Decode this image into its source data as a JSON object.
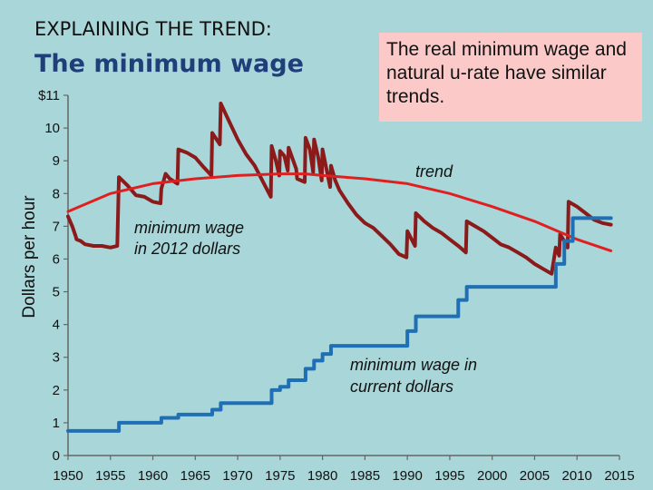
{
  "header": {
    "kicker": "EXPLAINING THE TREND:",
    "title": "The minimum wage"
  },
  "callout": {
    "text": "The real minimum wage and natural u-rate have similar trends."
  },
  "chart_data": {
    "type": "line",
    "ylabel": "Dollars per hour",
    "ylim": [
      0,
      11
    ],
    "xlim": [
      1950,
      2015
    ],
    "x_ticks": [
      "1950",
      "1955",
      "1960",
      "1965",
      "1970",
      "1975",
      "1980",
      "1985",
      "1990",
      "1995",
      "2000",
      "2005",
      "2010",
      "2015"
    ],
    "y_ticks": [
      "0",
      "1",
      "2",
      "3",
      "4",
      "5",
      "6",
      "7",
      "8",
      "9",
      "10",
      "$11"
    ],
    "annotations": {
      "real": "minimum wage in 2012 dollars",
      "trend": "trend",
      "nominal": "minimum wage in current dollars"
    },
    "colors": {
      "real": "#8b1a1a",
      "trend": "#e02020",
      "nominal": "#1f6fb5",
      "axis": "#666666"
    },
    "series": [
      {
        "key": "real",
        "x": [
          1950,
          1950.5,
          1950.9,
          1951,
          1951.5,
          1952,
          1953,
          1954,
          1955,
          1955.8,
          1956,
          1957,
          1958,
          1959,
          1960,
          1960.9,
          1961,
          1961.5,
          1962,
          1962.9,
          1963,
          1964,
          1965,
          1966,
          1966.9,
          1967,
          1967.9,
          1968,
          1969,
          1970,
          1971,
          1972,
          1973,
          1973.9,
          1974,
          1974.5,
          1974.9,
          1975,
          1975.5,
          1975.9,
          1976,
          1976.9,
          1977,
          1977.9,
          1978,
          1978.5,
          1978.9,
          1979,
          1979.5,
          1979.9,
          1980,
          1980.5,
          1980.9,
          1981,
          1981.5,
          1982,
          1983,
          1984,
          1985,
          1986,
          1987,
          1988,
          1989,
          1989.9,
          1990,
          1990.9,
          1991,
          1992,
          1993,
          1994,
          1995,
          1996,
          1996.9,
          1997,
          1998,
          1999,
          2000,
          2001,
          2002,
          2003,
          2004,
          2005,
          2006,
          2007,
          2007.5,
          2007.9,
          2008,
          2008.5,
          2008.9,
          2009,
          2010,
          2011,
          2012,
          2013,
          2014
        ],
        "y": [
          7.3,
          7.0,
          6.7,
          6.6,
          6.55,
          6.45,
          6.4,
          6.4,
          6.35,
          6.4,
          8.5,
          8.25,
          7.95,
          7.9,
          7.75,
          7.7,
          8.15,
          8.6,
          8.45,
          8.3,
          9.35,
          9.25,
          9.1,
          8.8,
          8.55,
          9.85,
          9.5,
          10.75,
          10.2,
          9.65,
          9.2,
          8.85,
          8.35,
          7.9,
          9.45,
          9.0,
          8.55,
          9.3,
          9.15,
          8.7,
          9.4,
          8.75,
          8.45,
          8.35,
          9.7,
          9.35,
          8.65,
          9.65,
          9.1,
          8.4,
          9.35,
          8.7,
          8.2,
          8.85,
          8.4,
          8.1,
          7.7,
          7.35,
          7.1,
          6.95,
          6.7,
          6.45,
          6.15,
          6.05,
          6.85,
          6.4,
          7.4,
          7.15,
          6.95,
          6.8,
          6.6,
          6.4,
          6.2,
          7.15,
          7.0,
          6.85,
          6.65,
          6.45,
          6.35,
          6.2,
          6.05,
          5.85,
          5.7,
          5.55,
          6.35,
          6.1,
          6.75,
          6.55,
          6.35,
          7.75,
          7.6,
          7.4,
          7.2,
          7.1,
          7.05
        ]
      },
      {
        "key": "trend",
        "x": [
          1950,
          1955,
          1960,
          1965,
          1970,
          1975,
          1978,
          1980,
          1985,
          1990,
          1995,
          2000,
          2005,
          2010,
          2014
        ],
        "y": [
          7.45,
          8.0,
          8.3,
          8.45,
          8.55,
          8.6,
          8.6,
          8.55,
          8.45,
          8.3,
          8.0,
          7.6,
          7.15,
          6.6,
          6.25
        ]
      },
      {
        "key": "nominal",
        "x": [
          1950,
          1956,
          1961,
          1963,
          1967,
          1968,
          1974,
          1975,
          1976,
          1978,
          1979,
          1980,
          1981,
          1990,
          1991,
          1996,
          1997,
          2007.5,
          2008.5,
          2009.5,
          2014
        ],
        "y": [
          0.75,
          1.0,
          1.15,
          1.25,
          1.4,
          1.6,
          2.0,
          2.1,
          2.3,
          2.65,
          2.9,
          3.1,
          3.35,
          3.8,
          4.25,
          4.75,
          5.15,
          5.85,
          6.55,
          7.25,
          7.25
        ]
      }
    ]
  }
}
